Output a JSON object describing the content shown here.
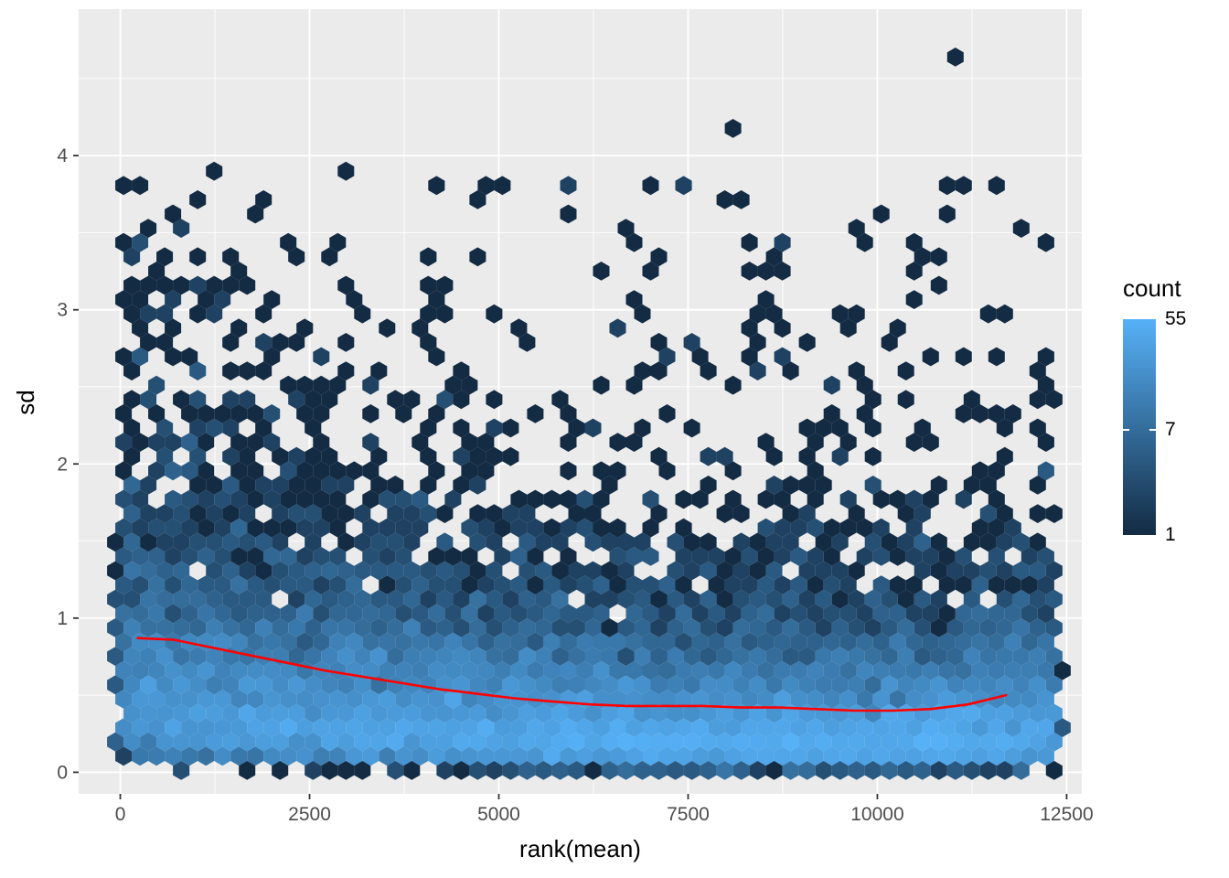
{
  "chart_data": {
    "type": "hexbin",
    "title": "",
    "xlabel": "rank(mean)",
    "ylabel": "sd",
    "x_ticks": [
      0,
      2500,
      5000,
      7500,
      10000,
      12500
    ],
    "y_ticks": [
      0,
      1,
      2,
      3,
      4
    ],
    "x_minor": [
      1250,
      3750,
      6250,
      8750,
      11250
    ],
    "y_minor": [
      0.5,
      1.5,
      2.5,
      3.5,
      4.5
    ],
    "xlim": [
      -550,
      12700
    ],
    "ylim": [
      -0.14,
      4.95
    ],
    "x_data_range": [
      0,
      12350
    ],
    "y_data_range": [
      0,
      4.7
    ],
    "legend": {
      "title": "count",
      "scale": "log",
      "limits": [
        1,
        55
      ],
      "ticks": [
        {
          "value": 55,
          "label": "55"
        },
        {
          "value": 7,
          "label": "7"
        },
        {
          "value": 1,
          "label": "1"
        }
      ]
    },
    "colors": {
      "hex_low": "#132B43",
      "hex_high": "#56B1F7",
      "panel_bg": "#EBEBEB",
      "grid": "#FFFFFF",
      "axis_text": "#4D4D4D",
      "title_text": "#000000",
      "tick_mark": "#333333"
    },
    "smooth_line": {
      "color": "#FF0000",
      "points": [
        [
          230,
          0.87
        ],
        [
          700,
          0.86
        ],
        [
          1200,
          0.81
        ],
        [
          1700,
          0.76
        ],
        [
          2200,
          0.71
        ],
        [
          2700,
          0.66
        ],
        [
          3200,
          0.62
        ],
        [
          3700,
          0.58
        ],
        [
          4200,
          0.54
        ],
        [
          4700,
          0.51
        ],
        [
          5200,
          0.48
        ],
        [
          5700,
          0.46
        ],
        [
          6200,
          0.44
        ],
        [
          6700,
          0.43
        ],
        [
          7200,
          0.43
        ],
        [
          7700,
          0.43
        ],
        [
          8200,
          0.42
        ],
        [
          8700,
          0.42
        ],
        [
          9200,
          0.41
        ],
        [
          9700,
          0.4
        ],
        [
          10200,
          0.4
        ],
        [
          10700,
          0.41
        ],
        [
          11200,
          0.44
        ],
        [
          11700,
          0.5
        ]
      ]
    },
    "hexbin_params": {
      "seed": 42,
      "n_points": 13500,
      "hex_radius_px": 10.4,
      "mean_base": 0.4,
      "mean_amp": 0.48,
      "mean_decay": 3000,
      "end_rise": 0.09,
      "end_rise_start": 10200,
      "sigma": 0.78,
      "truncate_sd": 3.92,
      "outlier_count": 130,
      "max_count": 55
    },
    "outliers": [
      [
        11100,
        4.67
      ],
      [
        8100,
        4.12
      ]
    ]
  }
}
